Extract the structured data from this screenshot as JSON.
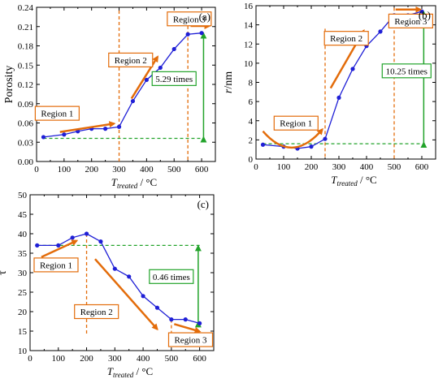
{
  "chart_data": [
    {
      "type": "line",
      "panel_label": "(a)",
      "ylabel": "Porosity",
      "xlabel_main": "T",
      "xlabel_sub": "treated",
      "xlabel_unit": " / °C",
      "xlim": [
        0,
        650
      ],
      "ylim": [
        0,
        0.24
      ],
      "xticks": [
        0,
        100,
        200,
        300,
        400,
        500,
        600
      ],
      "yticks": [
        0.0,
        0.03,
        0.06,
        0.09,
        0.12,
        0.15,
        0.18,
        0.21,
        0.24
      ],
      "ytick_labels": [
        "0.00",
        "0.03",
        "0.06",
        "0.09",
        "0.12",
        "0.15",
        "0.18",
        "0.21",
        "0.24"
      ],
      "series": [
        {
          "x": [
            25,
            100,
            150,
            200,
            250,
            300,
            350,
            400,
            450,
            500,
            550,
            600
          ],
          "y": [
            0.038,
            0.042,
            0.047,
            0.051,
            0.051,
            0.054,
            0.094,
            0.127,
            0.146,
            0.175,
            0.198,
            0.2
          ]
        }
      ],
      "regions": [
        {
          "label": "Region 1",
          "box_x": 75,
          "box_y": 0.075,
          "arrow": [
            [
              75,
              0.045
            ],
            [
              280,
              0.058
            ]
          ]
        },
        {
          "label": "Region 2",
          "box_x": 342,
          "box_y": 0.158,
          "arrow": [
            [
              345,
              0.098
            ],
            [
              440,
              0.165
            ]
          ]
        },
        {
          "label": "Region 3",
          "box_x": 555,
          "box_y": 0.222,
          "arrow": [
            [
              550,
              0.21
            ],
            [
              625,
              0.21
            ]
          ]
        }
      ],
      "vlines": [
        {
          "x": 300,
          "y_top": 0.235
        },
        {
          "x": 550,
          "y_top": 0.22
        }
      ],
      "baseline": {
        "y": 0.036,
        "x_from": 25,
        "x_to": 600
      },
      "dash_top": {
        "y": 0.2,
        "x_from": 600,
        "x_to": 615
      },
      "annotation": {
        "label": "5.29 times",
        "x": 607,
        "y_low": 0.036,
        "y_high": 0.2,
        "box_x": 500,
        "box_y": 0.129
      }
    },
    {
      "type": "line",
      "panel_label": "(b)",
      "ylabel_main": "r",
      "ylabel_unit": "/nm",
      "xlabel_main": "T",
      "xlabel_sub": "treated",
      "xlabel_unit": " / °C",
      "xlim": [
        0,
        650
      ],
      "ylim": [
        0,
        16
      ],
      "xticks": [
        0,
        100,
        200,
        300,
        400,
        500,
        600
      ],
      "yticks": [
        0,
        2,
        4,
        6,
        8,
        10,
        12,
        14,
        16
      ],
      "ytick_labels": [
        "0",
        "2",
        "4",
        "6",
        "8",
        "10",
        "12",
        "14",
        "16"
      ],
      "series": [
        {
          "x": [
            25,
            100,
            150,
            200,
            250,
            300,
            350,
            400,
            450,
            500,
            550,
            600
          ],
          "y": [
            1.5,
            1.3,
            1.1,
            1.3,
            2.1,
            6.4,
            9.4,
            11.8,
            13.3,
            15.0,
            15.0,
            15.4
          ]
        }
      ],
      "regions": [
        {
          "label": "Region 1",
          "box_x": 145,
          "box_y": 3.75
        },
        {
          "label": "Region 2",
          "box_x": 327,
          "box_y": 12.6
        },
        {
          "label": "Region 3",
          "box_x": 560,
          "box_y": 14.4
        }
      ],
      "vlines": [
        {
          "x": 250,
          "y_top": 13.6
        },
        {
          "x": 500,
          "y_top": 15.8
        }
      ],
      "baseline": {
        "y": 1.6,
        "x_from": 25,
        "x_to": 600
      },
      "dash_top": {
        "y": 15.4,
        "x_from": 600,
        "x_to": 615
      },
      "annotation": {
        "label": "10.25 times",
        "x": 607,
        "y_low": 1.6,
        "y_high": 15.4,
        "box_x": 545,
        "box_y": 9.2
      }
    },
    {
      "type": "line",
      "panel_label": "(c)",
      "ylabel": "τ",
      "xlabel_main": "T",
      "xlabel_sub": "treated",
      "xlabel_unit": " / °C",
      "xlim": [
        0,
        650
      ],
      "ylim": [
        10,
        50
      ],
      "xticks": [
        0,
        100,
        200,
        300,
        400,
        500,
        600
      ],
      "yticks": [
        10,
        15,
        20,
        25,
        30,
        35,
        40,
        45,
        50
      ],
      "ytick_labels": [
        "10",
        "15",
        "20",
        "25",
        "30",
        "35",
        "40",
        "45",
        "50"
      ],
      "series": [
        {
          "x": [
            25,
            100,
            150,
            200,
            250,
            300,
            350,
            400,
            450,
            500,
            550,
            600
          ],
          "y": [
            37,
            37,
            39,
            40,
            38,
            31,
            29,
            24,
            21,
            18,
            18,
            17
          ]
        }
      ],
      "regions": [
        {
          "label": "Region 1",
          "box_x": 92,
          "box_y": 32
        },
        {
          "label": "Region 2",
          "box_x": 235,
          "box_y": 20
        },
        {
          "label": "Region 3",
          "box_x": 568,
          "box_y": 12.8
        }
      ],
      "vlines": [
        {
          "x": 200,
          "y_top": 40,
          "y_bottom": 14
        },
        {
          "x": 500,
          "y_top": 18,
          "y_bottom": 12
        }
      ],
      "baseline": {
        "y": 37,
        "x_from": 25,
        "x_to": 600
      },
      "annotation": {
        "label": "0.46 times",
        "x": 595,
        "y_low": 17,
        "y_high": 37,
        "box_x": 500,
        "box_y": 29
      }
    }
  ]
}
